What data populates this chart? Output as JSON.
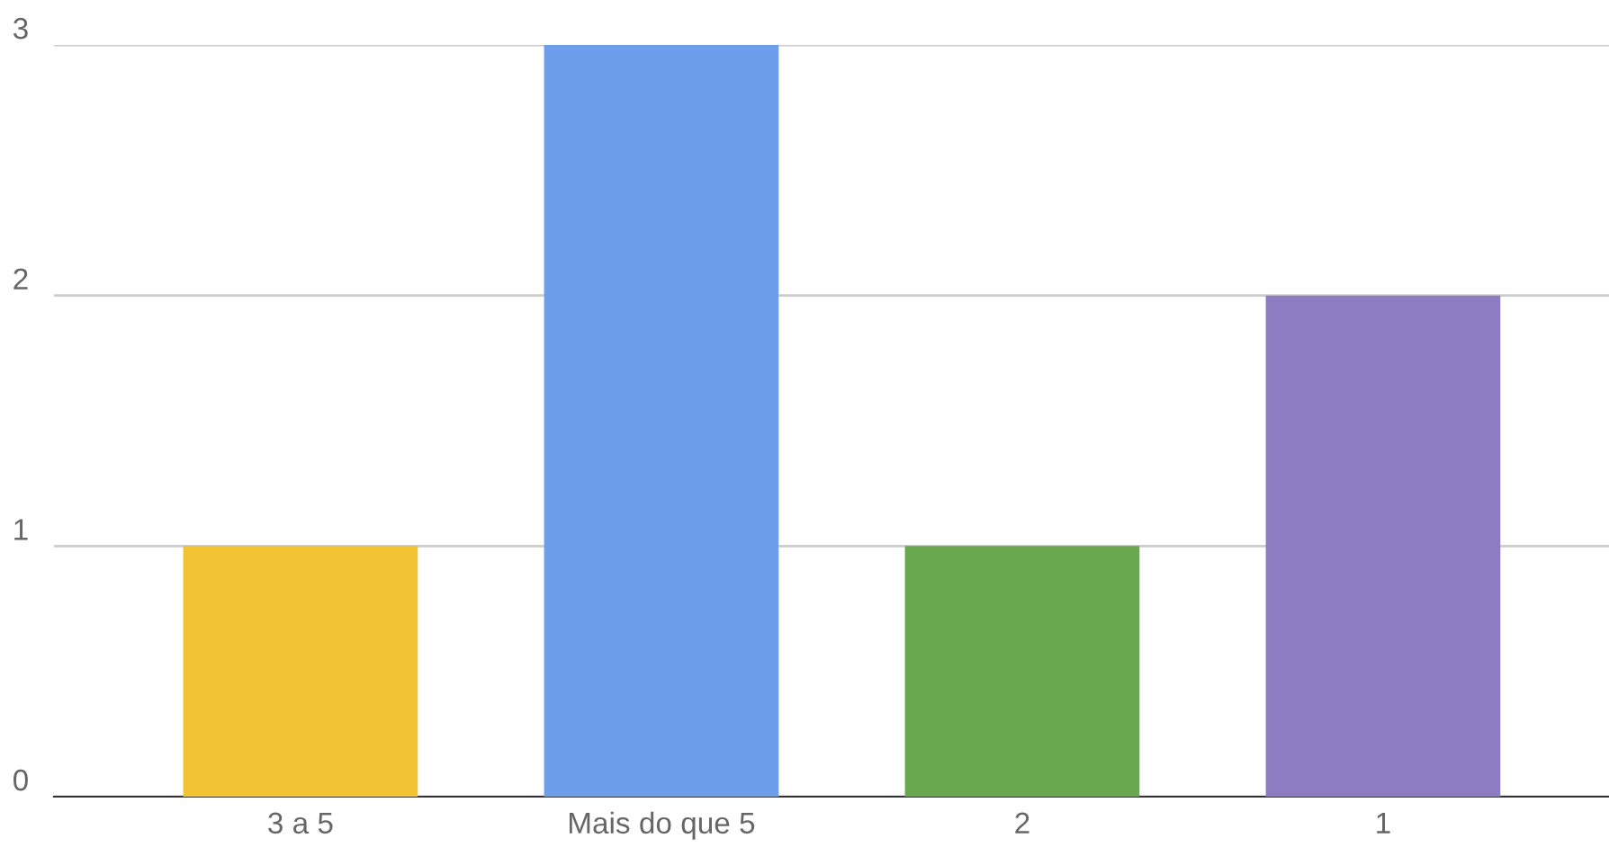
{
  "chart_data": {
    "type": "bar",
    "categories": [
      "3 a 5",
      "Mais do que 5",
      "2",
      "1"
    ],
    "values": [
      1,
      3,
      1,
      2
    ],
    "colors": [
      "#f1c232",
      "#6d9eeb",
      "#6aa84f",
      "#8e7cc3"
    ],
    "ylim": [
      0,
      3
    ],
    "yticks": [
      0,
      1,
      2,
      3
    ],
    "grid": "y",
    "legend": false
  }
}
